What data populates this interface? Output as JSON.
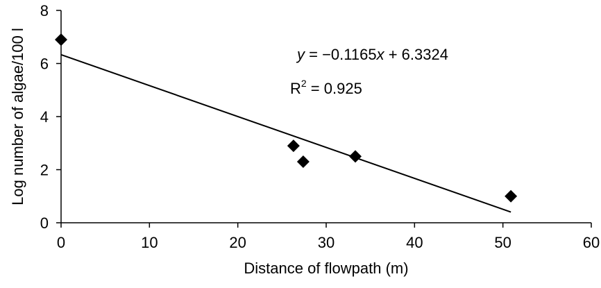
{
  "chart_data": {
    "type": "scatter",
    "title": "",
    "xlabel": "Distance of flowpath (m)",
    "ylabel": "Log number of algae/100 l",
    "xlim": [
      0,
      60
    ],
    "ylim": [
      0,
      8
    ],
    "x_ticks": [
      "0",
      "10",
      "20",
      "30",
      "40",
      "50",
      "60"
    ],
    "y_ticks": [
      "0",
      "2",
      "4",
      "6",
      "8"
    ],
    "grid": false,
    "marker": "diamond",
    "series": [
      {
        "x": [
          0,
          26.3,
          27.4,
          33.3,
          50.9
        ],
        "y": [
          6.9,
          2.9,
          2.3,
          2.5,
          1.0
        ]
      }
    ],
    "trendline": {
      "slope": -0.1165,
      "intercept": 6.3324,
      "x_range": [
        0,
        50.9
      ]
    },
    "annotations": {
      "equation_y": "y",
      "equation_rest": " = −0.1165",
      "equation_x": "x",
      "equation_tail": " + 6.3324",
      "r2_label": "R",
      "r2_sup": "2",
      "r2_value": " = 0.925"
    },
    "colors": {
      "marker": "#000000",
      "line": "#000000",
      "axis": "#000000"
    }
  }
}
